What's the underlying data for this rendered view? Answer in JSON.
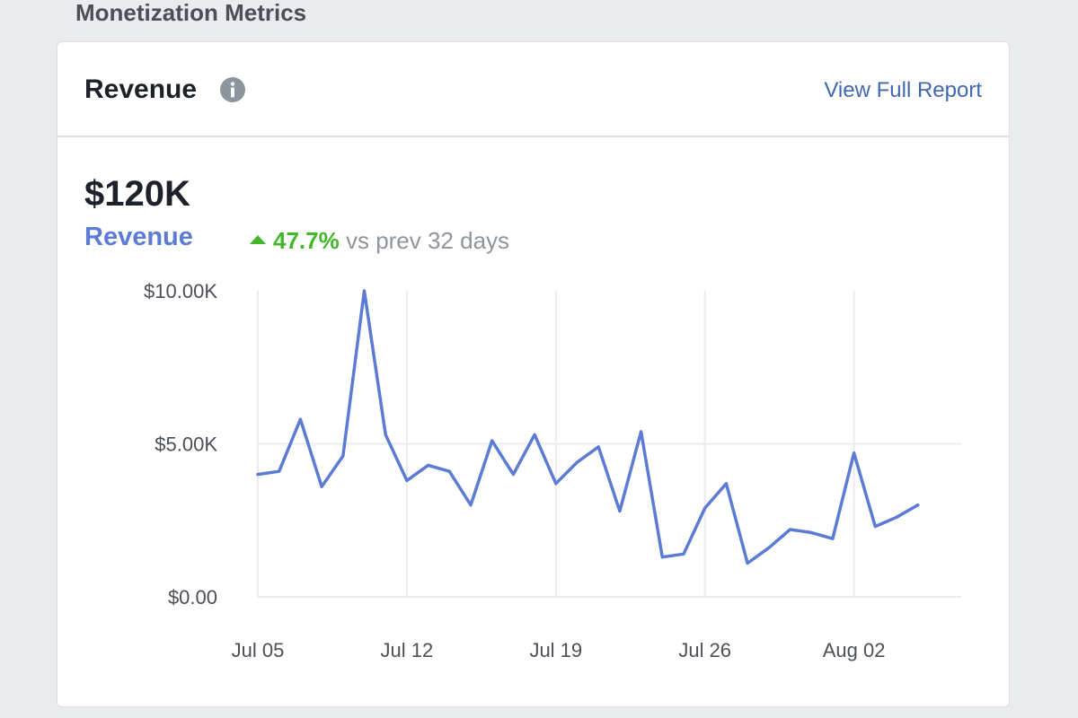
{
  "section": {
    "title": "Monetization Metrics"
  },
  "card": {
    "title": "Revenue",
    "info_icon": "info-circle-icon",
    "report_link": "View Full Report",
    "total_value": "$120K",
    "metric_label": "Revenue",
    "change_percent": "47.7%",
    "change_text": "vs prev 32 days",
    "change_direction": "up"
  },
  "colors": {
    "line": "#5b7bd5",
    "positive": "#42b72a",
    "link": "#4267b2",
    "grid": "#e9ebee"
  },
  "chart_data": {
    "type": "line",
    "title": "",
    "xlabel": "",
    "ylabel": "",
    "ylim": [
      0,
      10000
    ],
    "y_ticks": [
      {
        "value": 0,
        "label": "$0.00"
      },
      {
        "value": 5000,
        "label": "$5.00K"
      },
      {
        "value": 10000,
        "label": "$10.00K"
      }
    ],
    "x_ticks": [
      {
        "date": "Jul 05",
        "index": 0
      },
      {
        "date": "Jul 12",
        "index": 7
      },
      {
        "date": "Jul 19",
        "index": 14
      },
      {
        "date": "Jul 26",
        "index": 21
      },
      {
        "date": "Aug 02",
        "index": 28
      }
    ],
    "grid": true,
    "series": [
      {
        "values": [
          4000,
          4100,
          5800,
          3600,
          4600,
          10000,
          5300,
          3800,
          4300,
          4100,
          3000,
          5100,
          4000,
          5300,
          3700,
          4400,
          4900,
          2800,
          5400,
          1300,
          1400,
          2900,
          3700,
          1100,
          1600,
          2200,
          2100,
          1900,
          4700,
          2300,
          2600,
          3000
        ]
      }
    ]
  }
}
